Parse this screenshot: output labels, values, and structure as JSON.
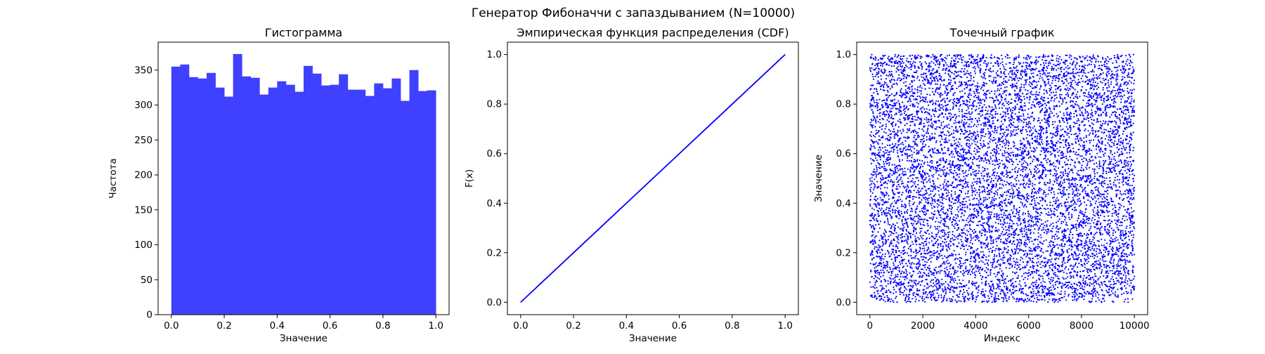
{
  "figure": {
    "suptitle": "Генератор Фибоначчи с запаздыванием (N=10000)"
  },
  "chart_data": [
    {
      "type": "bar",
      "title": "Гистограмма",
      "xlabel": "Значение",
      "ylabel": "Частота",
      "color": "#4040ff",
      "bins": 30,
      "bin_range": [
        0,
        1
      ],
      "values": [
        355,
        358,
        340,
        338,
        346,
        325,
        312,
        373,
        341,
        339,
        315,
        325,
        334,
        329,
        319,
        356,
        345,
        328,
        329,
        344,
        322,
        322,
        313,
        331,
        324,
        338,
        306,
        350,
        320,
        321
      ],
      "xlim": [
        -0.05,
        1.05
      ],
      "ylim": [
        0,
        390
      ],
      "xticks": [
        0.0,
        0.2,
        0.4,
        0.6,
        0.8,
        1.0
      ],
      "xtick_labels": [
        "0.0",
        "0.2",
        "0.4",
        "0.6",
        "0.8",
        "1.0"
      ],
      "yticks": [
        0,
        50,
        100,
        150,
        200,
        250,
        300,
        350
      ],
      "ytick_labels": [
        "0",
        "50",
        "100",
        "150",
        "200",
        "250",
        "300",
        "350"
      ],
      "grid": false
    },
    {
      "type": "line",
      "title": "Эмпирическая функция распределения (CDF)",
      "xlabel": "Значение",
      "ylabel": "F(x)",
      "color": "#0000ff",
      "x": [
        0.0,
        0.1,
        0.2,
        0.3,
        0.4,
        0.5,
        0.6,
        0.7,
        0.8,
        0.9,
        1.0
      ],
      "y": [
        0.0,
        0.1,
        0.2,
        0.3,
        0.4,
        0.5,
        0.6,
        0.7,
        0.8,
        0.9,
        1.0
      ],
      "xlim": [
        -0.05,
        1.05
      ],
      "ylim": [
        -0.05,
        1.05
      ],
      "xticks": [
        0.0,
        0.2,
        0.4,
        0.6,
        0.8,
        1.0
      ],
      "xtick_labels": [
        "0.0",
        "0.2",
        "0.4",
        "0.6",
        "0.8",
        "1.0"
      ],
      "yticks": [
        0.0,
        0.2,
        0.4,
        0.6,
        0.8,
        1.0
      ],
      "ytick_labels": [
        "0.0",
        "0.2",
        "0.4",
        "0.6",
        "0.8",
        "1.0"
      ],
      "grid": false
    },
    {
      "type": "scatter",
      "title": "Точечный график",
      "xlabel": "Индекс",
      "ylabel": "Значение",
      "color": "#0000ff",
      "n_points": 10000,
      "x_range": [
        0,
        10000
      ],
      "y_range": [
        0,
        1
      ],
      "distribution": "uniform",
      "xlim": [
        -500,
        10500
      ],
      "ylim": [
        -0.05,
        1.05
      ],
      "xticks": [
        0,
        2000,
        4000,
        6000,
        8000,
        10000
      ],
      "xtick_labels": [
        "0",
        "2000",
        "4000",
        "6000",
        "8000",
        "10000"
      ],
      "yticks": [
        0.0,
        0.2,
        0.4,
        0.6,
        0.8,
        1.0
      ],
      "ytick_labels": [
        "0.0",
        "0.2",
        "0.4",
        "0.6",
        "0.8",
        "1.0"
      ],
      "grid": false
    }
  ]
}
